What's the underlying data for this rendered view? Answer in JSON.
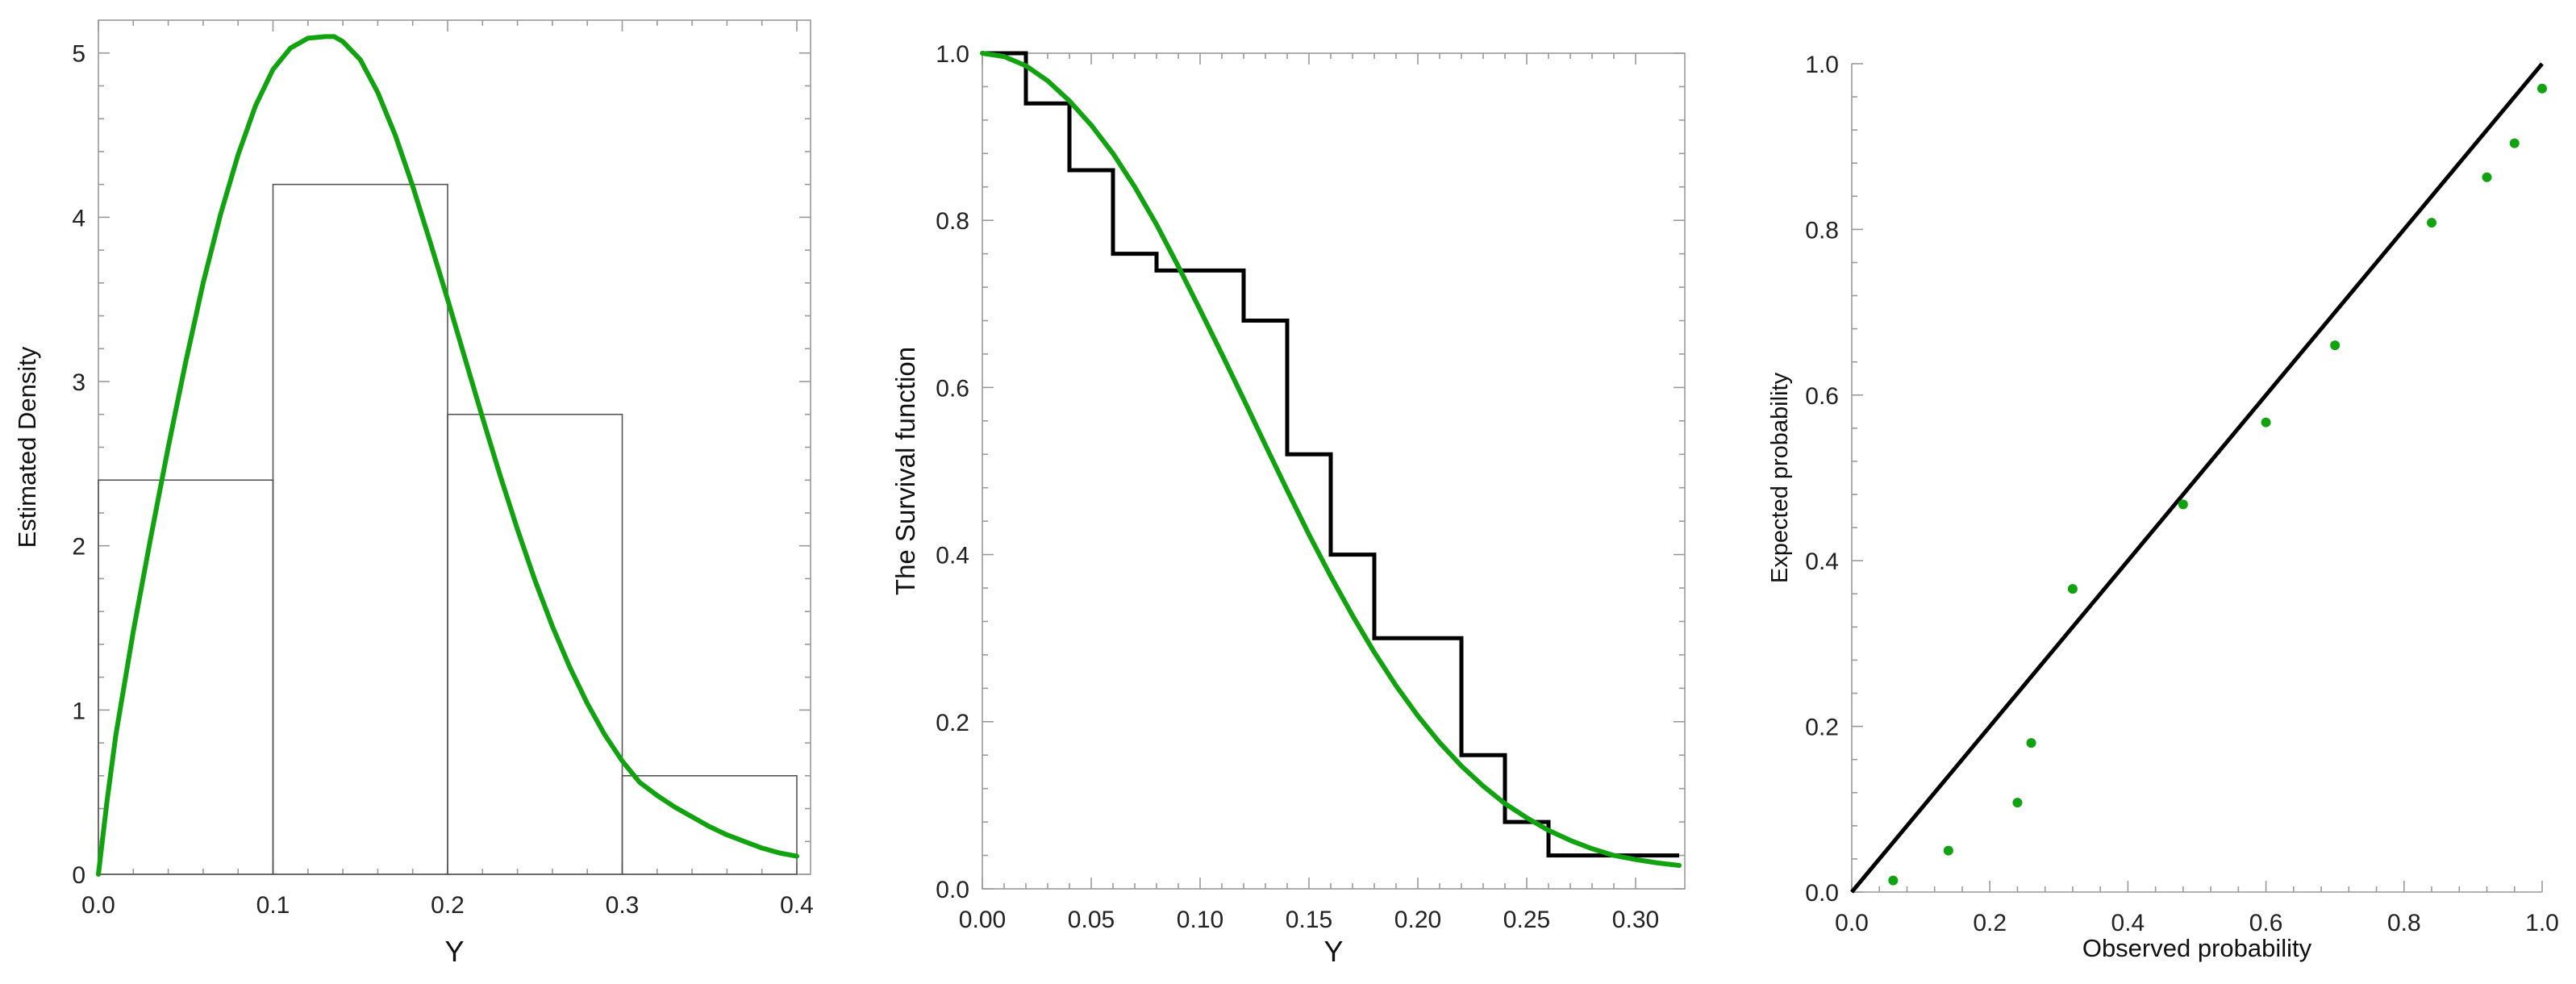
{
  "chart_data": [
    {
      "type": "bar",
      "subtype": "histogram-with-density",
      "xlabel": "Y",
      "ylabel": "Estimated  Density",
      "xlim": [
        0,
        0.4
      ],
      "ylim": [
        0,
        5.2
      ],
      "x_ticks": [
        "0.0",
        "0.1",
        "0.2",
        "0.3",
        "0.4"
      ],
      "y_ticks": [
        "0",
        "1",
        "2",
        "3",
        "4",
        "5"
      ],
      "bins": [
        {
          "from": 0.0,
          "to": 0.1,
          "height": 2.4
        },
        {
          "from": 0.1,
          "to": 0.2,
          "height": 4.2
        },
        {
          "from": 0.2,
          "to": 0.3,
          "height": 2.8
        },
        {
          "from": 0.3,
          "to": 0.4,
          "height": 0.6
        }
      ],
      "density_curve": {
        "x": [
          0.0,
          0.005,
          0.01,
          0.02,
          0.03,
          0.04,
          0.05,
          0.06,
          0.07,
          0.08,
          0.09,
          0.1,
          0.11,
          0.12,
          0.13,
          0.135,
          0.14,
          0.15,
          0.16,
          0.17,
          0.18,
          0.19,
          0.2,
          0.21,
          0.22,
          0.23,
          0.24,
          0.25,
          0.26,
          0.27,
          0.28,
          0.29,
          0.3,
          0.31,
          0.32,
          0.33,
          0.34,
          0.35,
          0.36,
          0.37,
          0.38,
          0.39,
          0.4
        ],
        "y": [
          0.0,
          0.45,
          0.85,
          1.48,
          2.05,
          2.6,
          3.12,
          3.6,
          4.02,
          4.38,
          4.68,
          4.9,
          5.03,
          5.09,
          5.1,
          5.1,
          5.07,
          4.96,
          4.76,
          4.5,
          4.19,
          3.85,
          3.5,
          3.14,
          2.78,
          2.43,
          2.1,
          1.79,
          1.51,
          1.26,
          1.04,
          0.85,
          0.69,
          0.56,
          0.48,
          0.41,
          0.35,
          0.29,
          0.24,
          0.2,
          0.16,
          0.13,
          0.11
        ]
      },
      "colors": {
        "curve": "#11a30f",
        "bars": "#555555"
      }
    },
    {
      "type": "line",
      "subtype": "survival-function",
      "xlabel": "Y",
      "ylabel": "The Survival function",
      "xlim": [
        0,
        0.32
      ],
      "ylim": [
        0,
        1.0
      ],
      "x_ticks": [
        "0.00",
        "0.05",
        "0.10",
        "0.15",
        "0.20",
        "0.25",
        "0.30"
      ],
      "y_ticks": [
        "0.0",
        "0.2",
        "0.4",
        "0.6",
        "0.8",
        "1.0"
      ],
      "empirical_step": {
        "x": [
          0.0,
          0.02,
          0.04,
          0.06,
          0.08,
          0.12,
          0.14,
          0.16,
          0.18,
          0.22,
          0.24,
          0.26,
          0.32
        ],
        "y": [
          1.0,
          0.94,
          0.86,
          0.76,
          0.74,
          0.68,
          0.52,
          0.4,
          0.3,
          0.16,
          0.08,
          0.04,
          0.04
        ]
      },
      "fitted_curve": {
        "x": [
          0.0,
          0.01,
          0.02,
          0.03,
          0.04,
          0.05,
          0.06,
          0.07,
          0.08,
          0.09,
          0.1,
          0.11,
          0.12,
          0.13,
          0.14,
          0.15,
          0.16,
          0.17,
          0.18,
          0.19,
          0.2,
          0.21,
          0.22,
          0.23,
          0.24,
          0.25,
          0.26,
          0.27,
          0.28,
          0.29,
          0.3,
          0.31,
          0.32
        ],
        "y": [
          1.0,
          0.996,
          0.985,
          0.967,
          0.943,
          0.914,
          0.88,
          0.84,
          0.795,
          0.745,
          0.693,
          0.64,
          0.586,
          0.531,
          0.477,
          0.424,
          0.374,
          0.327,
          0.283,
          0.243,
          0.207,
          0.175,
          0.147,
          0.123,
          0.102,
          0.085,
          0.07,
          0.058,
          0.048,
          0.04,
          0.035,
          0.031,
          0.028
        ]
      },
      "colors": {
        "curve": "#11a30f",
        "step": "#000000"
      }
    },
    {
      "type": "scatter",
      "subtype": "probability-plot",
      "xlabel": "Observed probability",
      "ylabel": "Expected probability",
      "xlim": [
        0,
        1.0
      ],
      "ylim": [
        0,
        1.0
      ],
      "x_ticks": [
        "0.0",
        "0.2",
        "0.4",
        "0.6",
        "0.8",
        "1.0"
      ],
      "y_ticks": [
        "0.0",
        "0.2",
        "0.4",
        "0.6",
        "0.8",
        "1.0"
      ],
      "points": {
        "x": [
          0.06,
          0.14,
          0.24,
          0.26,
          0.32,
          0.48,
          0.6,
          0.7,
          0.84,
          0.92,
          0.96,
          1.0
        ],
        "y": [
          0.014,
          0.05,
          0.108,
          0.18,
          0.366,
          0.468,
          0.567,
          0.66,
          0.808,
          0.863,
          0.904,
          0.97
        ]
      },
      "reference_line": {
        "x": [
          0,
          1
        ],
        "y": [
          0,
          1
        ]
      },
      "colors": {
        "points": "#11a30f",
        "line": "#000000"
      }
    }
  ]
}
